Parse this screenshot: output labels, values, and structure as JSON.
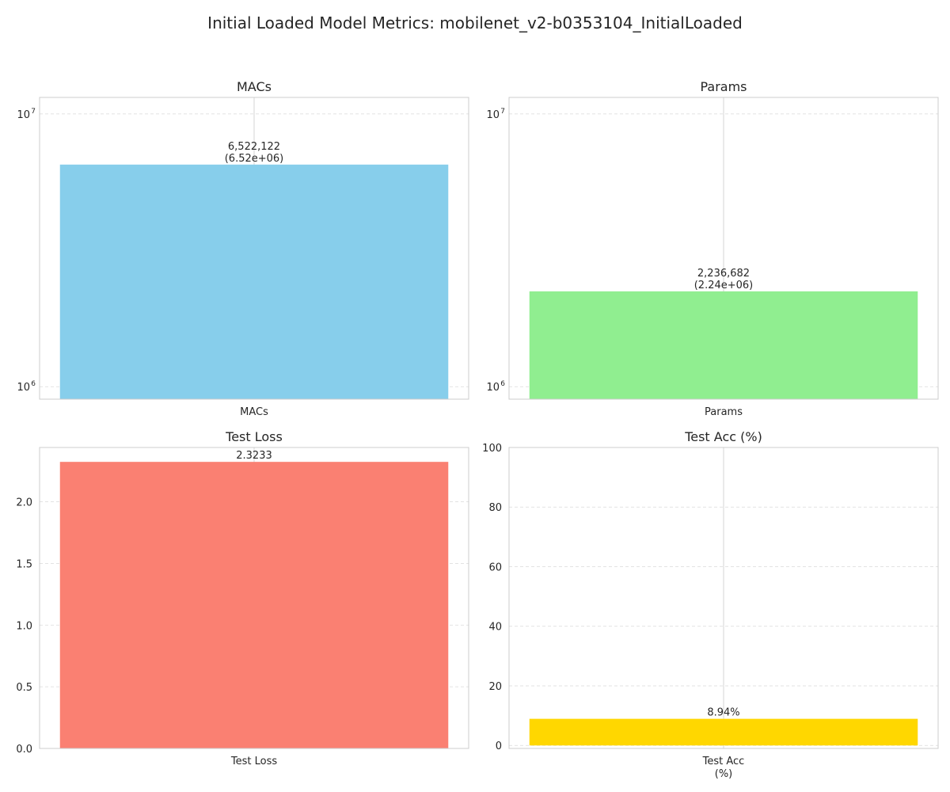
{
  "figure": {
    "title": "Initial Loaded Model Metrics: mobilenet_v2-b0353104_InitialLoaded"
  },
  "chart_data": [
    {
      "type": "bar",
      "title": "MACs",
      "categories": [
        "MACs"
      ],
      "category_lines": [
        [
          "MACs"
        ]
      ],
      "values": [
        6522122
      ],
      "value_labels": [
        [
          "6,522,122",
          "(6.52e+06)"
        ]
      ],
      "yscale": "log",
      "ylim": [
        900000,
        11500000
      ],
      "yticks": [
        {
          "base": "10",
          "exp": "6",
          "value": 1000000
        },
        {
          "base": "10",
          "exp": "7",
          "value": 10000000
        }
      ],
      "color": "#87CEEB",
      "grid": true
    },
    {
      "type": "bar",
      "title": "Params",
      "categories": [
        "Params"
      ],
      "category_lines": [
        [
          "Params"
        ]
      ],
      "values": [
        2236682
      ],
      "value_labels": [
        [
          "2,236,682",
          "(2.24e+06)"
        ]
      ],
      "yscale": "log",
      "ylim": [
        900000,
        11500000
      ],
      "yticks": [
        {
          "base": "10",
          "exp": "6",
          "value": 1000000
        },
        {
          "base": "10",
          "exp": "7",
          "value": 10000000
        }
      ],
      "color": "#90EE90",
      "grid": true
    },
    {
      "type": "bar",
      "title": "Test Loss",
      "categories": [
        "Test Loss"
      ],
      "category_lines": [
        [
          "Test Loss"
        ]
      ],
      "values": [
        2.3233
      ],
      "value_labels": [
        [
          "2.3233"
        ]
      ],
      "yscale": "linear",
      "ylim": [
        0,
        2.44
      ],
      "yticks": [
        {
          "label": "0.0",
          "value": 0
        },
        {
          "label": "0.5",
          "value": 0.5
        },
        {
          "label": "1.0",
          "value": 1.0
        },
        {
          "label": "1.5",
          "value": 1.5
        },
        {
          "label": "2.0",
          "value": 2.0
        }
      ],
      "color": "#FA8072",
      "grid": true
    },
    {
      "type": "bar",
      "title": "Test Acc (%)",
      "categories": [
        "Test Acc (%)"
      ],
      "category_lines": [
        [
          "Test Acc",
          "(%)"
        ]
      ],
      "values": [
        8.94
      ],
      "value_labels": [
        [
          "8.94%"
        ]
      ],
      "yscale": "linear",
      "ylim": [
        -1,
        100
      ],
      "yticks": [
        {
          "label": "0",
          "value": 0
        },
        {
          "label": "20",
          "value": 20
        },
        {
          "label": "40",
          "value": 40
        },
        {
          "label": "60",
          "value": 60
        },
        {
          "label": "80",
          "value": 80
        },
        {
          "label": "100",
          "value": 100
        }
      ],
      "color": "#FFD700",
      "grid": true
    }
  ]
}
